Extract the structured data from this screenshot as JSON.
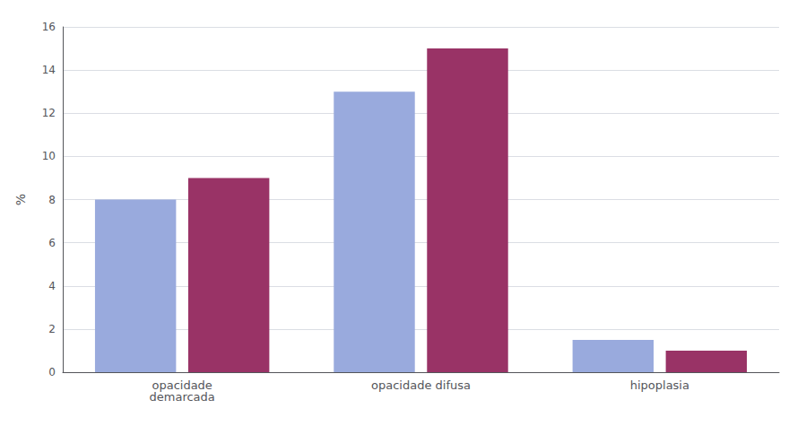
{
  "chart_data": {
    "type": "bar",
    "categories": [
      "opacidade\ndemarcada",
      "opacidade difusa",
      "hipoplasia"
    ],
    "series": [
      {
        "color": "#99AADD",
        "values": [
          8.0,
          13.0,
          1.5
        ]
      },
      {
        "color": "#993366",
        "values": [
          9.0,
          15.0,
          1.0
        ]
      }
    ],
    "ylabel": "%",
    "ylim": [
      0,
      16
    ],
    "yticks": [
      0,
      2,
      4,
      6,
      8,
      10,
      12,
      14,
      16
    ],
    "grid": true
  }
}
